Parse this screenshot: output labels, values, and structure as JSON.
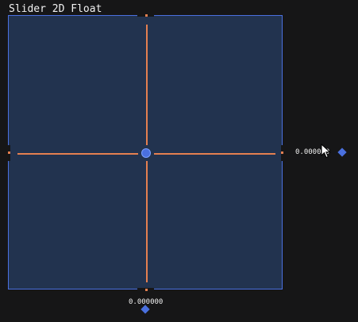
{
  "widget": {
    "title": "Slider 2D Float",
    "value_x": "0.000000",
    "value_y": "0.000000"
  },
  "colors": {
    "background": "#161617",
    "pad_fill": "#22334f",
    "accent": "#4a70df",
    "crosshair": "#e58050"
  },
  "icons": {
    "x_handle": "diamond-handle-icon",
    "y_handle": "diamond-handle-icon",
    "cursor": "mouse-pointer-icon"
  }
}
